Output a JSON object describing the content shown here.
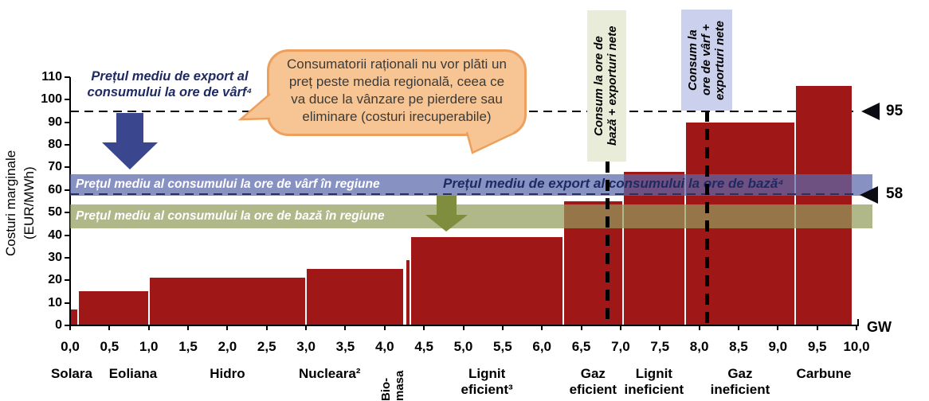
{
  "colors": {
    "bar_red": "#A01718",
    "peak_band": "rgba(90,104,170,0.72)",
    "base_band": "rgba(146,155,92,0.72)",
    "peak_arrow_blue": "#3A478F",
    "base_arrow_green": "#7E8E3E",
    "bubble_fill": "#F7C493",
    "bubble_border": "#EDA05E",
    "baseline_box_bg": "#E9ECD8",
    "peakline_box_bg": "#CBD1EC",
    "navy_text": "#1F2A63"
  },
  "chart_data": {
    "type": "bar",
    "ylabel": "Costuri marginale (EUR/MWh)",
    "ylabel_lines": [
      "Costuri marginale",
      "(EUR/MWh)"
    ],
    "xlabel": "GW",
    "xlim": [
      0,
      10
    ],
    "ylim": [
      0,
      110
    ],
    "x_tick_step": 0.5,
    "x_tick_labels": [
      "0,0",
      "0,5",
      "1,0",
      "1,5",
      "2,0",
      "2,5",
      "3,0",
      "3,5",
      "4,0",
      "4,5",
      "5,0",
      "5,5",
      "6,0",
      "6,5",
      "7,0",
      "7,5",
      "8,0",
      "8,5",
      "9,0",
      "9,5",
      "10,0"
    ],
    "y_ticks": [
      110,
      100,
      90,
      80,
      70,
      60,
      50,
      40,
      30,
      20,
      10,
      0
    ],
    "series": [
      {
        "name": "Solara",
        "label_lines": [
          "Solara"
        ],
        "x0": 0.0,
        "x1": 0.1,
        "value": 7,
        "label_x": 0.02
      },
      {
        "name": "Eoliana",
        "label_lines": [
          "Eoliana"
        ],
        "x0": 0.1,
        "x1": 1.0,
        "value": 15,
        "label_x": 0.8
      },
      {
        "name": "Hidro",
        "label_lines": [
          "Hidro"
        ],
        "x0": 1.0,
        "x1": 3.0,
        "value": 21
      },
      {
        "name": "Nucleara",
        "label_lines": [
          "Nucleara²"
        ],
        "x0": 3.0,
        "x1": 4.25,
        "value": 25,
        "label_x": 3.3
      },
      {
        "name": "Bio-masa",
        "label_lines": [
          "Bio-",
          "masa"
        ],
        "x0": 4.27,
        "x1": 4.33,
        "value": 29,
        "label_rotated": true
      },
      {
        "name": "Lignit eficient",
        "label_lines": [
          "Lignit",
          "eficient³"
        ],
        "x0": 4.33,
        "x1": 6.27,
        "value": 39
      },
      {
        "name": "Gaz eficient",
        "label_lines": [
          "Gaz",
          "eficient"
        ],
        "x0": 6.27,
        "x1": 7.03,
        "value": 55
      },
      {
        "name": "Lignit ineficient",
        "label_lines": [
          "Lignit",
          "ineficient"
        ],
        "x0": 7.03,
        "x1": 7.82,
        "value": 68
      },
      {
        "name": "Gaz ineficient",
        "label_lines": [
          "Gaz",
          "ineficient"
        ],
        "x0": 7.82,
        "x1": 9.22,
        "value": 90
      },
      {
        "name": "Carbune",
        "label_lines": [
          "Carbune"
        ],
        "x0": 9.22,
        "x1": 9.95,
        "value": 106
      }
    ],
    "bands": [
      {
        "label": "Prețul mediu al consumului la ore de vârf în regiune",
        "from": 57.5,
        "to": 67,
        "color": "rgba(90,104,170,0.72)"
      },
      {
        "label": "Prețul mediu al consumului la ore de bază în regiune",
        "from": 43,
        "to": 53.5,
        "color": "rgba(146,155,92,0.72)"
      }
    ],
    "reference_lines": [
      {
        "label": "95",
        "value": 95,
        "color": "#000000"
      },
      {
        "label": "58",
        "value": 58,
        "color": "#2A3160"
      }
    ],
    "vertical_lines": [
      {
        "x": 6.83,
        "label": "Consum la ore de bază + exporturi nete",
        "label_lines": [
          "Consum la ore de",
          "bază + exporturi nete"
        ]
      },
      {
        "x": 8.1,
        "label": "Consum la ore de vârf + exporturi nete",
        "label_lines": [
          "Consum la",
          "ore de vârf +",
          "exporturi nete"
        ]
      }
    ]
  },
  "annotations": {
    "peak_export_note": {
      "lines": [
        "Prețul mediu de export al",
        "consumului la ore de vârf⁴"
      ]
    },
    "base_export_note": {
      "text": "Prețul mediu de export al consumului la ore de bază⁴"
    },
    "bubble": {
      "lines": [
        "Consumatorii raționali nu vor plăti un",
        "preț peste media regională, ceea ce",
        "va duce la vânzare pe pierdere sau",
        "eliminare (costuri irecuperabile)"
      ]
    }
  }
}
